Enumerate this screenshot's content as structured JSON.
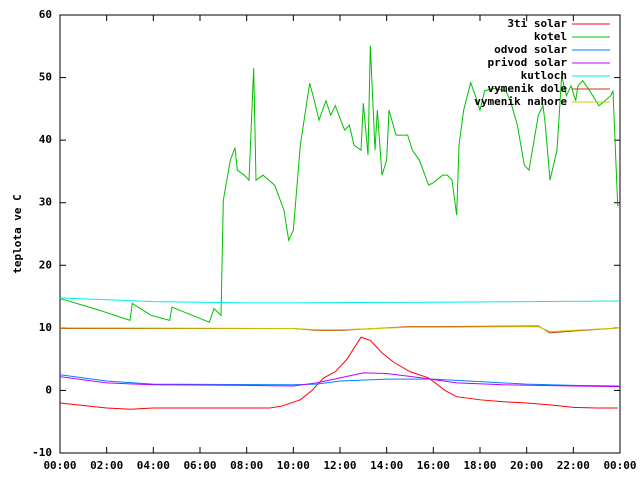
{
  "chart_data": {
    "type": "line",
    "y_label": "teplota ve C",
    "xlim": [
      0,
      24
    ],
    "ylim": [
      -10,
      60
    ],
    "xticks": [
      {
        "value": 0,
        "label": "00:00"
      },
      {
        "value": 2,
        "label": "02:00"
      },
      {
        "value": 4,
        "label": "04:00"
      },
      {
        "value": 6,
        "label": "06:00"
      },
      {
        "value": 8,
        "label": "08:00"
      },
      {
        "value": 10,
        "label": "10:00"
      },
      {
        "value": 12,
        "label": "12:00"
      },
      {
        "value": 14,
        "label": "14:00"
      },
      {
        "value": 16,
        "label": "16:00"
      },
      {
        "value": 18,
        "label": "18:00"
      },
      {
        "value": 20,
        "label": "20:00"
      },
      {
        "value": 22,
        "label": "22:00"
      },
      {
        "value": 24,
        "label": "00:00"
      }
    ],
    "yticks": [
      -10,
      0,
      10,
      20,
      30,
      40,
      50,
      60
    ],
    "grid": false,
    "legend": "top-right",
    "series": [
      {
        "name": "3ti solar",
        "color": "#ff0000",
        "x": [
          0,
          2,
          3,
          4,
          9,
          9.5,
          10.3,
          10.8,
          11.3,
          11.8,
          12.3,
          12.9,
          13.3,
          13.8,
          14.3,
          15,
          15.8,
          16.5,
          17,
          18,
          19,
          20,
          21,
          22,
          23,
          23.9
        ],
        "values": [
          -2,
          -2.8,
          -3,
          -2.8,
          -2.8,
          -2.5,
          -1.5,
          0,
          2,
          3,
          5,
          8.5,
          8,
          6,
          4.5,
          3,
          2,
          0,
          -1,
          -1.5,
          -1.8,
          -2,
          -2.3,
          -2.7,
          -2.8,
          -2.8
        ]
      },
      {
        "name": "kotel",
        "color": "#00c000",
        "x": [
          0,
          1.7,
          3.0,
          3.1,
          3.9,
          4.7,
          4.8,
          6.0,
          6.4,
          6.6,
          6.9,
          7.0,
          7.3,
          7.5,
          7.6,
          7.9,
          8.1,
          8.3,
          8.4,
          8.7,
          9.2,
          9.6,
          9.8,
          10.0,
          10.3,
          10.7,
          10.9,
          11.1,
          11.4,
          11.6,
          11.8,
          12.0,
          12.2,
          12.4,
          12.6,
          12.9,
          13.0,
          13.2,
          13.3,
          13.5,
          13.6,
          13.8,
          14.0,
          14.1,
          14.4,
          14.6,
          14.9,
          15.1,
          15.4,
          15.8,
          16.0,
          16.4,
          16.6,
          16.8,
          17.0,
          17.1,
          17.3,
          17.6,
          17.8,
          18.0,
          18.2,
          18.6,
          19.1,
          19.3,
          19.6,
          19.9,
          20.1,
          20.5,
          20.7,
          20.8,
          21.0,
          21.3,
          21.5,
          21.7,
          21.9,
          22.1,
          22.2,
          22.4,
          22.7,
          23.1,
          23.6,
          23.7,
          23.9,
          24
        ],
        "values": [
          14.7,
          12.8,
          11.2,
          13.9,
          12.0,
          11.2,
          13.3,
          11.5,
          10.9,
          13.1,
          12.0,
          30.4,
          36.8,
          38.8,
          35.2,
          34.4,
          33.6,
          51.5,
          33.6,
          34.4,
          32.8,
          28.8,
          24.0,
          25.6,
          39.2,
          49.1,
          46.3,
          43.2,
          46.3,
          44.0,
          45.5,
          43.5,
          41.6,
          42.4,
          39.2,
          38.4,
          45.9,
          37.6,
          55.1,
          38.4,
          44.8,
          34.4,
          36.8,
          44.8,
          40.8,
          40.8,
          40.8,
          38.4,
          36.8,
          32.8,
          33.2,
          34.4,
          34.4,
          33.6,
          28.0,
          39.2,
          44.8,
          49.2,
          47.1,
          44.8,
          47.9,
          48.3,
          47.9,
          46.3,
          42.4,
          36.0,
          35.2,
          44.0,
          45.5,
          42.4,
          33.6,
          38.4,
          50.3,
          47.1,
          48.7,
          46.3,
          48.7,
          49.5,
          47.9,
          45.5,
          47.1,
          47.9,
          29.6,
          29.6
        ]
      },
      {
        "name": "odvod solar",
        "color": "#0080ff",
        "x": [
          0,
          2,
          4,
          10,
          11,
          12,
          14,
          16,
          18,
          20,
          22,
          24
        ],
        "values": [
          2.5,
          1.5,
          1,
          0.9,
          1,
          1.5,
          1.8,
          1.8,
          1.4,
          1,
          0.8,
          0.7
        ]
      },
      {
        "name": "privod solar",
        "color": "#c000ff",
        "x": [
          0,
          2,
          4,
          8,
          10,
          11,
          12,
          13,
          14,
          15.5,
          17,
          19,
          22,
          24
        ],
        "values": [
          2.2,
          1.2,
          0.9,
          0.8,
          0.7,
          1.2,
          2,
          2.8,
          2.7,
          2,
          1.2,
          0.9,
          0.7,
          0.6
        ]
      },
      {
        "name": "kutloch",
        "color": "#00eeee",
        "x": [
          0,
          2,
          4,
          8,
          10,
          16,
          20,
          24
        ],
        "values": [
          14.8,
          14.5,
          14.2,
          14,
          14,
          14.1,
          14.2,
          14.3
        ]
      },
      {
        "name": "vymenik dole",
        "color": "#c04000",
        "x": [
          0,
          10,
          11,
          12,
          15,
          16,
          20.5,
          21,
          22,
          24
        ],
        "values": [
          9.9,
          9.9,
          9.6,
          9.6,
          10.2,
          10.2,
          10.3,
          9.2,
          9.5,
          10
        ]
      },
      {
        "name": "vymenik nahore",
        "color": "#c8c800",
        "x": [
          0,
          10,
          11,
          12,
          15,
          16,
          20.5,
          21,
          22,
          24
        ],
        "values": [
          10,
          9.9,
          9.7,
          9.7,
          10.1,
          10.1,
          10.2,
          9.4,
          9.6,
          10
        ]
      }
    ]
  }
}
